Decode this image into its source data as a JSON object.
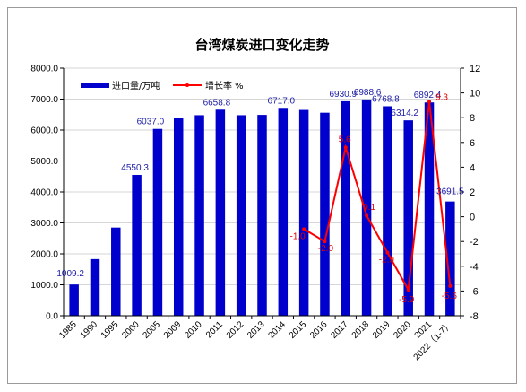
{
  "chart_data": {
    "type": "bar",
    "title": "台湾煤炭进口变化走势",
    "categories": [
      "1985",
      "1990",
      "1995",
      "2000",
      "2005",
      "2009",
      "2010",
      "2011",
      "2012",
      "2013",
      "2014",
      "2015",
      "2016",
      "2017",
      "2018",
      "2019",
      "2020",
      "2021",
      "2022（1-7）"
    ],
    "series": [
      {
        "name": "进口量/万吨",
        "type": "bar",
        "axis": "left",
        "color": "#0000cc",
        "values": [
          1009.2,
          1830,
          2850,
          4550.3,
          6037.0,
          6380,
          6480,
          6658.8,
          6480,
          6490,
          6717.0,
          6650,
          6560,
          6930.9,
          6988.6,
          6768.8,
          6314.2,
          6892.4,
          3691.5
        ],
        "labels": [
          "1009.2",
          null,
          null,
          "4550.3",
          "6037.0",
          null,
          null,
          "6658.8",
          null,
          null,
          "6717.0",
          null,
          null,
          "6930.9",
          "6988.6",
          "6768.8",
          "6314.2",
          "6892.4",
          "3691.5"
        ]
      },
      {
        "name": "增长率 %",
        "type": "line",
        "axis": "right",
        "color": "#ff0000",
        "values": [
          null,
          null,
          null,
          null,
          null,
          null,
          null,
          null,
          null,
          null,
          null,
          -1.0,
          -2.0,
          5.6,
          0.1,
          -2.9,
          -5.9,
          9.3,
          -5.6
        ],
        "labels": [
          null,
          null,
          null,
          null,
          null,
          null,
          null,
          null,
          null,
          null,
          null,
          "-1.0",
          "-2.0",
          "5.6",
          "0.1",
          "-2.9",
          "-5.9",
          "9.3",
          "-5.6"
        ]
      }
    ],
    "y_left": {
      "min": 0,
      "max": 8000,
      "step": 1000,
      "ticks": [
        "0.0",
        "1000.0",
        "2000.0",
        "3000.0",
        "4000.0",
        "5000.0",
        "6000.0",
        "7000.0",
        "8000.0"
      ]
    },
    "y_right": {
      "min": -8,
      "max": 12,
      "step": 2,
      "ticks": [
        "-8",
        "-6",
        "-4",
        "-2",
        "0",
        "2",
        "4",
        "6",
        "8",
        "10",
        "12"
      ]
    },
    "legend": {
      "position": "top-left"
    },
    "grid": true
  }
}
